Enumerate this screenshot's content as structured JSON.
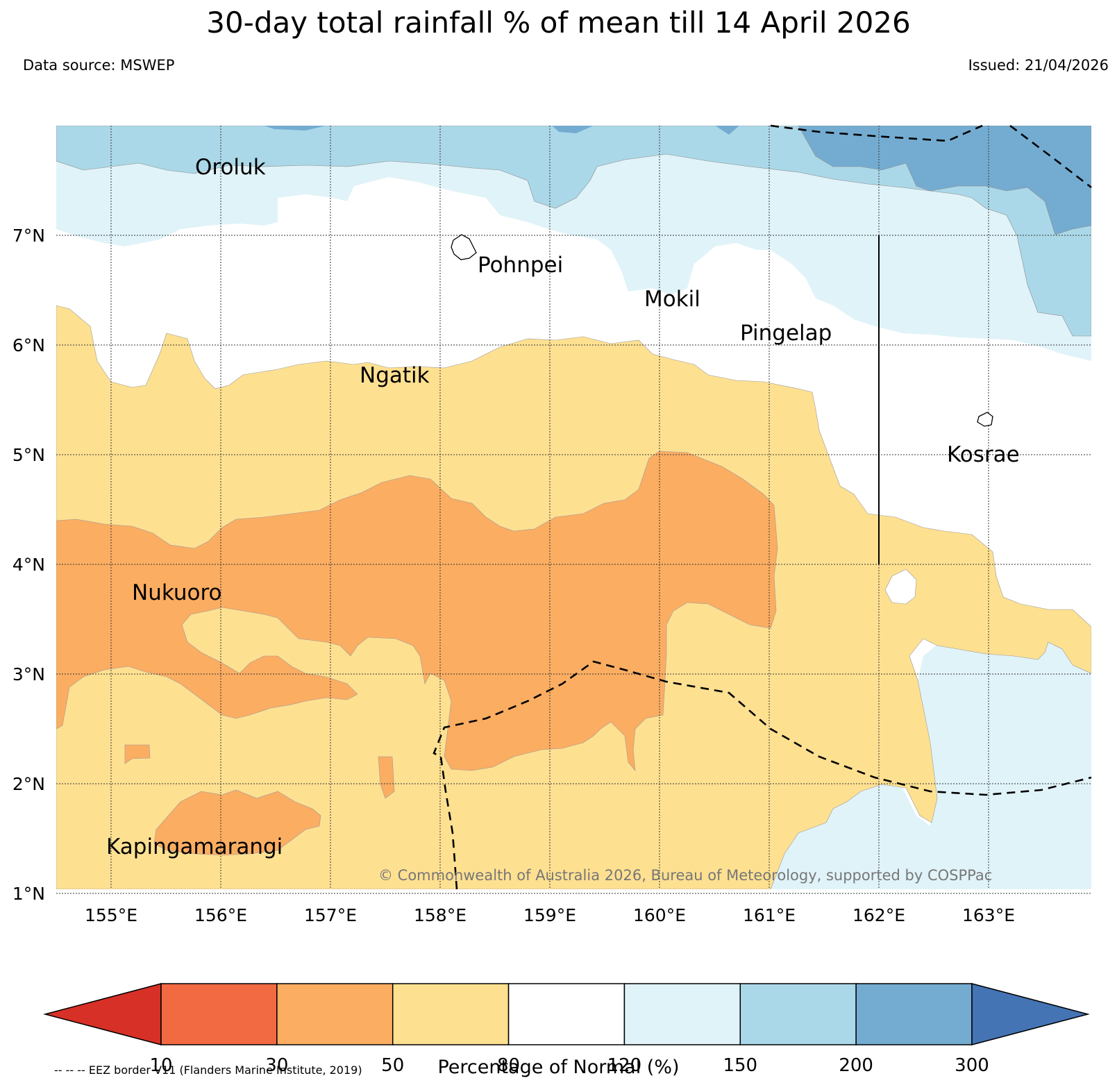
{
  "header": {
    "title": "30-day total rainfall % of mean till 14 April 2026",
    "data_source": "Data source: MSWEP",
    "issued": "Issued: 21/04/2026"
  },
  "map": {
    "lon_labels": [
      "155°E",
      "156°E",
      "157°E",
      "158°E",
      "159°E",
      "160°E",
      "161°E",
      "162°E",
      "163°E"
    ],
    "lat_labels": [
      "7°N",
      "6°N",
      "5°N",
      "4°N",
      "3°N",
      "2°N",
      "1°N"
    ],
    "places": {
      "oroluk": "Oroluk",
      "pohnpei": "Pohnpei",
      "mokil": "Mokil",
      "pingelap": "Pingelap",
      "ngatik": "Ngatik",
      "kosrae": "Kosrae",
      "nukuoro": "Nukuoro",
      "kapingamarangi": "Kapingamarangi"
    },
    "copyright": "© Commonwealth of Australia 2026, Bureau of Meteorology, supported by COSPPac"
  },
  "colorbar": {
    "ticks": [
      "10",
      "30",
      "50",
      "80",
      "120",
      "150",
      "200",
      "300"
    ],
    "label": "Percentage of Normal (%)",
    "colors": [
      "#d73027",
      "#f26a42",
      "#fbad62",
      "#fee091",
      "#ffffff",
      "#e0f3f8",
      "#abd8e8",
      "#74acd1",
      "#4474b4"
    ]
  },
  "legend_note": "-- -- -- EEZ border V11 (Flanders Marine Institute, 2019)"
}
